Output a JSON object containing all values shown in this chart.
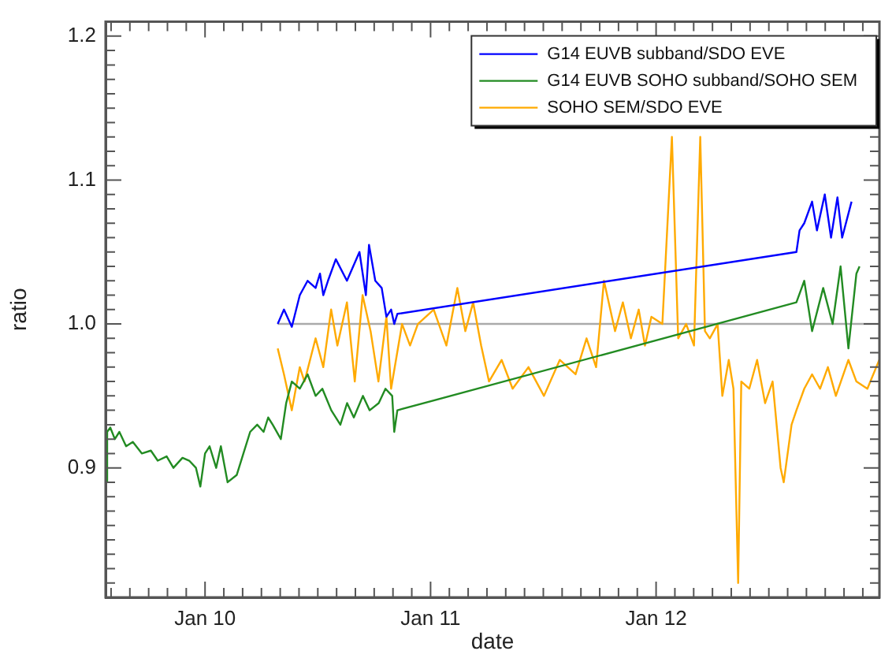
{
  "chart_data": {
    "type": "line",
    "xlabel": "date",
    "ylabel": "ratio",
    "legend": "top right",
    "xlim": [
      "--01-09T13:25",
      "--01-12T23:46"
    ],
    "ylim": [
      0.81,
      1.21
    ],
    "xticks": [
      {
        "value": "--01-09T14:00",
        "label": null
      },
      {
        "value": "--01-09T16:00",
        "label": null
      },
      {
        "value": "--01-09T18:00",
        "label": null
      },
      {
        "value": "--01-09T20:00",
        "label": null
      },
      {
        "value": "--01-09T22:00",
        "label": null
      },
      {
        "value": "--01-10",
        "label": "Jan 10"
      },
      {
        "value": "--01-10T02:00",
        "label": null
      },
      {
        "value": "--01-10T04:00",
        "label": null
      },
      {
        "value": "--01-10T06:00",
        "label": null
      },
      {
        "value": "--01-10T08:00",
        "label": null
      },
      {
        "value": "--01-10T10:00",
        "label": null
      },
      {
        "value": "--01-10T12:00",
        "label": null
      },
      {
        "value": "--01-10T14:00",
        "label": null
      },
      {
        "value": "--01-10T16:00",
        "label": null
      },
      {
        "value": "--01-10T18:00",
        "label": null
      },
      {
        "value": "--01-10T20:00",
        "label": null
      },
      {
        "value": "--01-10T22:00",
        "label": null
      },
      {
        "value": "--01-11",
        "label": "Jan 11"
      },
      {
        "value": "--01-11T02:00",
        "label": null
      },
      {
        "value": "--01-11T04:00",
        "label": null
      },
      {
        "value": "--01-11T06:00",
        "label": null
      },
      {
        "value": "--01-11T08:00",
        "label": null
      },
      {
        "value": "--01-11T10:00",
        "label": null
      },
      {
        "value": "--01-11T12:00",
        "label": null
      },
      {
        "value": "--01-11T14:00",
        "label": null
      },
      {
        "value": "--01-11T16:00",
        "label": null
      },
      {
        "value": "--01-11T18:00",
        "label": null
      },
      {
        "value": "--01-11T20:00",
        "label": null
      },
      {
        "value": "--01-11T22:00",
        "label": null
      },
      {
        "value": "--01-12",
        "label": "Jan 12"
      },
      {
        "value": "--01-12T02:00",
        "label": null
      },
      {
        "value": "--01-12T04:00",
        "label": null
      },
      {
        "value": "--01-12T06:00",
        "label": null
      },
      {
        "value": "--01-12T08:00",
        "label": null
      },
      {
        "value": "--01-12T10:00",
        "label": null
      },
      {
        "value": "--01-12T12:00",
        "label": null
      },
      {
        "value": "--01-12T14:00",
        "label": null
      },
      {
        "value": "--01-12T16:00",
        "label": null
      },
      {
        "value": "--01-12T18:00",
        "label": null
      },
      {
        "value": "--01-12T20:00",
        "label": null
      },
      {
        "value": "--01-12T22:00",
        "label": null
      }
    ],
    "yticks": [
      {
        "value": 0.82,
        "label": null
      },
      {
        "value": 0.83,
        "label": null
      },
      {
        "value": 0.84,
        "label": null
      },
      {
        "value": 0.85,
        "label": null
      },
      {
        "value": 0.86,
        "label": null
      },
      {
        "value": 0.87,
        "label": null
      },
      {
        "value": 0.88,
        "label": null
      },
      {
        "value": 0.89,
        "label": null
      },
      {
        "value": 0.9,
        "label": "0.9"
      },
      {
        "value": 0.91,
        "label": null
      },
      {
        "value": 0.92,
        "label": null
      },
      {
        "value": 0.93,
        "label": null
      },
      {
        "value": 0.94,
        "label": null
      },
      {
        "value": 0.95,
        "label": null
      },
      {
        "value": 0.96,
        "label": null
      },
      {
        "value": 0.97,
        "label": null
      },
      {
        "value": 0.98,
        "label": null
      },
      {
        "value": 0.99,
        "label": null
      },
      {
        "value": 1.0,
        "label": "1.0"
      },
      {
        "value": 1.01,
        "label": null
      },
      {
        "value": 1.02,
        "label": null
      },
      {
        "value": 1.03,
        "label": null
      },
      {
        "value": 1.04,
        "label": null
      },
      {
        "value": 1.05,
        "label": null
      },
      {
        "value": 1.06,
        "label": null
      },
      {
        "value": 1.07,
        "label": null
      },
      {
        "value": 1.08,
        "label": null
      },
      {
        "value": 1.09,
        "label": null
      },
      {
        "value": 1.1,
        "label": "1.1"
      },
      {
        "value": 1.11,
        "label": null
      },
      {
        "value": 1.12,
        "label": null
      },
      {
        "value": 1.13,
        "label": null
      },
      {
        "value": 1.14,
        "label": null
      },
      {
        "value": 1.15,
        "label": null
      },
      {
        "value": 1.16,
        "label": null
      },
      {
        "value": 1.17,
        "label": null
      },
      {
        "value": 1.18,
        "label": null
      },
      {
        "value": 1.19,
        "label": null
      },
      {
        "value": 1.2,
        "label": "1.2"
      }
    ],
    "series": [
      {
        "name": "G14 EUVB subband/SDO EVE",
        "color": "#0000ff",
        "x": [
          "--01-10T07:44",
          "--01-10T08:24",
          "--01-10T09:14",
          "--01-10T10:05",
          "--01-10T10:55",
          "--01-10T11:46",
          "--01-10T12:14",
          "--01-10T12:35",
          "--01-10T13:05",
          "--01-10T13:55",
          "--01-10T15:06",
          "--01-10T16:26",
          "--01-10T17:07",
          "--01-10T17:27",
          "--01-10T18:07",
          "--01-10T18:48",
          "--01-10T19:18",
          "--01-10T19:48",
          "--01-10T20:08",
          "--01-10T20:28",
          "--01-12T14:56",
          "--01-12T15:16",
          "--01-12T15:46",
          "--01-12T16:36",
          "--01-12T17:07",
          "--01-12T17:57",
          "--01-12T18:37",
          "--01-12T19:18",
          "--01-12T19:48",
          "--01-12T20:48"
        ],
        "values": [
          1.0,
          1.01,
          0.998,
          1.02,
          1.03,
          1.025,
          1.035,
          1.02,
          1.03,
          1.045,
          1.03,
          1.05,
          1.02,
          1.055,
          1.03,
          1.025,
          1.005,
          1.01,
          1.0,
          1.007,
          1.05,
          1.065,
          1.07,
          1.085,
          1.065,
          1.09,
          1.06,
          1.088,
          1.06,
          1.085
        ]
      },
      {
        "name": "G14 EUVB SOHO subband/SOHO SEM",
        "color": "#228b22",
        "x": [
          "--01-09T13:25",
          "--01-09T13:35",
          "--01-09T13:55",
          "--01-09T14:24",
          "--01-09T14:53",
          "--01-09T15:36",
          "--01-09T16:19",
          "--01-09T17:17",
          "--01-09T18:14",
          "--01-09T18:58",
          "--01-09T19:55",
          "--01-09T20:38",
          "--01-09T21:36",
          "--01-09T22:19",
          "--01-09T23:02",
          "--01-09T23:30",
          "--01-10T00:00",
          "--01-10T00:29",
          "--01-10T01:11",
          "--01-10T01:41",
          "--01-10T02:24",
          "--01-10T03:22",
          "--01-10T04:05",
          "--01-10T04:48",
          "--01-10T05:33",
          "--01-10T06:14",
          "--01-10T06:43",
          "--01-10T07:12",
          "--01-10T08:04",
          "--01-10T08:38",
          "--01-10T09:14",
          "--01-10T10:05",
          "--01-10T10:55",
          "--01-10T11:46",
          "--01-10T12:29",
          "--01-10T13:26",
          "--01-10T14:24",
          "--01-10T15:07",
          "--01-10T15:50",
          "--01-10T16:48",
          "--01-10T17:31",
          "--01-10T18:29",
          "--01-10T19:12",
          "--01-10T19:55",
          "--01-10T20:08",
          "--01-10T20:28",
          "--01-12T14:56",
          "--01-12T15:46",
          "--01-12T16:36",
          "--01-12T17:47",
          "--01-12T18:47",
          "--01-12T19:38",
          "--01-12T20:28",
          "--01-12T21:19",
          "--01-12T21:39"
        ],
        "values": [
          0.89,
          0.925,
          0.928,
          0.92,
          0.925,
          0.915,
          0.918,
          0.91,
          0.912,
          0.905,
          0.908,
          0.9,
          0.907,
          0.905,
          0.9,
          0.887,
          0.91,
          0.915,
          0.9,
          0.915,
          0.89,
          0.895,
          0.91,
          0.925,
          0.93,
          0.925,
          0.935,
          0.93,
          0.92,
          0.945,
          0.96,
          0.955,
          0.965,
          0.95,
          0.955,
          0.94,
          0.93,
          0.945,
          0.935,
          0.95,
          0.94,
          0.945,
          0.955,
          0.95,
          0.925,
          0.94,
          1.015,
          1.03,
          0.995,
          1.025,
          1.0,
          1.04,
          0.983,
          1.035,
          1.04
        ]
      },
      {
        "name": "SOHO SEM/SDO EVE",
        "color": "#ffaa00",
        "x": [
          "--01-10T07:44",
          "--01-10T08:24",
          "--01-10T09:14",
          "--01-10T10:05",
          "--01-10T10:35",
          "--01-10T11:46",
          "--01-10T12:35",
          "--01-10T13:25",
          "--01-10T14:05",
          "--01-10T15:06",
          "--01-10T15:56",
          "--01-10T16:46",
          "--01-10T17:37",
          "--01-10T18:27",
          "--01-10T19:18",
          "--01-10T19:48",
          "--01-10T20:58",
          "--01-10T21:49",
          "--01-10T22:39",
          "--01-11T00:20",
          "--01-11T01:41",
          "--01-11T02:51",
          "--01-11T03:42",
          "--01-11T04:32",
          "--01-11T05:23",
          "--01-11T06:13",
          "--01-11T07:34",
          "--01-11T08:44",
          "--01-11T10:25",
          "--01-11T12:04",
          "--01-11T13:45",
          "--01-11T15:26",
          "--01-11T16:36",
          "--01-11T17:37",
          "--01-11T18:27",
          "--01-11T19:38",
          "--01-11T20:28",
          "--01-11T21:19",
          "--01-11T22:09",
          "--01-11T22:49",
          "--01-11T23:30",
          "--01-12T00:40",
          "--01-12T01:41",
          "--01-12T02:21",
          "--01-12T03:12",
          "--01-12T04:02",
          "--01-12T04:42",
          "--01-12T05:12",
          "--01-12T05:43",
          "--01-12T06:33",
          "--01-12T07:03",
          "--01-12T07:44",
          "--01-12T08:14",
          "--01-12T08:44",
          "--01-12T09:04",
          "--01-12T09:55",
          "--01-12T10:45",
          "--01-12T11:36",
          "--01-12T12:24",
          "--01-12T13:15",
          "--01-12T13:35",
          "--01-12T14:25",
          "--01-12T14:56",
          "--01-12T15:46",
          "--01-12T16:36",
          "--01-12T17:27",
          "--01-12T18:17",
          "--01-12T19:08",
          "--01-12T20:28",
          "--01-12T21:19",
          "--01-12T22:29",
          "--01-12T23:45"
        ],
        "values": [
          0.983,
          0.965,
          0.94,
          0.97,
          0.96,
          0.99,
          0.97,
          1.01,
          0.985,
          1.015,
          0.96,
          1.02,
          0.995,
          0.96,
          1.005,
          0.955,
          1.0,
          0.985,
          1.0,
          1.01,
          0.985,
          1.025,
          0.995,
          1.015,
          0.985,
          0.96,
          0.975,
          0.955,
          0.97,
          0.95,
          0.975,
          0.965,
          0.99,
          0.97,
          1.03,
          0.995,
          1.015,
          0.99,
          1.01,
          0.985,
          1.005,
          1.0,
          1.13,
          0.99,
          1.0,
          0.985,
          1.13,
          0.995,
          0.99,
          1.0,
          0.95,
          0.975,
          0.955,
          0.82,
          0.96,
          0.955,
          0.975,
          0.945,
          0.96,
          0.9,
          0.89,
          0.93,
          0.94,
          0.955,
          0.965,
          0.955,
          0.97,
          0.95,
          0.975,
          0.96,
          0.955,
          0.975
        ]
      },
      {
        "color": "#aaaaaa",
        "x": [
          "--01-10T07:44",
          "--01-12T23:45"
        ],
        "values": [
          1.0,
          1.0
        ]
      }
    ]
  }
}
